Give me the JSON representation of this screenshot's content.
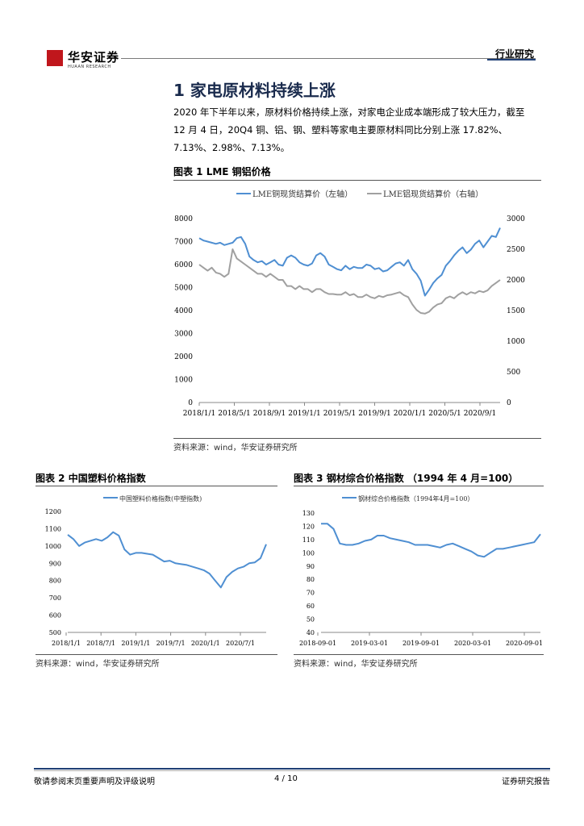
{
  "header": {
    "brand": "华安证券",
    "brand_sub": "HUAAN RESEARCH",
    "category": "行业研究"
  },
  "section": {
    "title": "1 家电原材料持续上涨",
    "paragraph": "2020 年下半年以来，原材料价格持续上涨，对家电企业成本端形成了较大压力，截至 12 月 4 日，20Q4 铜、铝、钢、塑料等家电主要原材料同比分别上涨 17.82%、7.13%、2.98%、7.13%。"
  },
  "figures": [
    {
      "title": "图表 1 LME 铜铝价格",
      "source": "资料来源：wind，华安证券研究所"
    },
    {
      "title": "图表 2 中国塑料价格指数",
      "source": "资料来源：wind，华安证券研究所"
    },
    {
      "title": "图表 3 钢材综合价格指数 （1994 年 4 月=100）",
      "source": "资料来源：wind，华安证券研究所"
    }
  ],
  "footer": {
    "disclaimer": "敬请参阅末页重要声明及评级说明",
    "page": "4 / 10",
    "report_type": "证券研究报告"
  },
  "colors": {
    "blue": "#4f8fd2",
    "grey": "#a0a0a0",
    "navy": "#1f3f75"
  },
  "chart_data": [
    {
      "type": "line",
      "title": "",
      "x_ticks": [
        "2018/1/1",
        "2018/5/1",
        "2018/9/1",
        "2019/1/1",
        "2019/5/1",
        "2019/9/1",
        "2020/1/1",
        "2020/5/1",
        "2020/9/1"
      ],
      "y_left_ticks": [
        "0",
        "1000",
        "2000",
        "3000",
        "4000",
        "5000",
        "6000",
        "7000",
        "8000"
      ],
      "y_right_ticks": [
        "0",
        "500",
        "1000",
        "1500",
        "2000",
        "2500",
        "3000"
      ],
      "ylim_left": [
        0,
        8000
      ],
      "ylim_right": [
        0,
        3000
      ],
      "legend_position": "top",
      "series": [
        {
          "name": "LME铜现货结算价（左轴）",
          "axis": "left",
          "color": "#4f8fd2",
          "x": [
            0,
            0.5,
            1,
            1.5,
            2,
            2.5,
            3,
            3.5,
            4,
            4.5,
            5,
            5.5,
            6,
            6.5,
            7,
            7.5,
            8,
            8.5,
            9,
            9.5,
            10,
            10.5,
            11,
            11.5,
            12,
            12.5,
            13,
            13.5,
            14,
            14.5,
            15,
            15.5,
            16,
            16.5,
            17,
            17.5,
            18,
            18.5,
            19,
            19.5,
            20,
            20.5,
            21,
            21.5,
            22,
            22.5,
            23,
            23.5,
            24,
            24.5,
            25,
            25.5,
            26,
            26.5,
            27,
            27.5,
            28,
            28.5,
            29,
            29.5,
            30,
            30.5,
            31,
            31.5,
            32,
            32.5,
            33,
            33.5,
            34,
            34.5,
            35,
            35.5,
            36
          ],
          "values": [
            7150,
            7050,
            7000,
            6950,
            6900,
            6950,
            6850,
            6900,
            6950,
            7150,
            7200,
            6900,
            6350,
            6200,
            6100,
            6150,
            6000,
            6100,
            6200,
            6000,
            5950,
            6300,
            6400,
            6300,
            6100,
            6000,
            5950,
            6050,
            6400,
            6500,
            6350,
            6000,
            5900,
            5800,
            5750,
            5950,
            5800,
            5900,
            5850,
            5850,
            6000,
            5950,
            5800,
            5850,
            5700,
            5750,
            5900,
            6050,
            6100,
            5950,
            6200,
            5800,
            5600,
            5300,
            4650,
            4900,
            5200,
            5400,
            5550,
            5950,
            6150,
            6400,
            6600,
            6750,
            6500,
            6650,
            6900,
            7050,
            6750,
            7000,
            7250,
            7200,
            7600
          ]
        },
        {
          "name": "LME铝现货结算价（右轴）",
          "axis": "right",
          "color": "#a0a0a0",
          "x": [
            0,
            0.5,
            1,
            1.5,
            2,
            2.5,
            3,
            3.5,
            4,
            4.5,
            5,
            5.5,
            6,
            6.5,
            7,
            7.5,
            8,
            8.5,
            9,
            9.5,
            10,
            10.5,
            11,
            11.5,
            12,
            12.5,
            13,
            13.5,
            14,
            14.5,
            15,
            15.5,
            16,
            16.5,
            17,
            17.5,
            18,
            18.5,
            19,
            19.5,
            20,
            20.5,
            21,
            21.5,
            22,
            22.5,
            23,
            23.5,
            24,
            24.5,
            25,
            25.5,
            26,
            26.5,
            27,
            27.5,
            28,
            28.5,
            29,
            29.5,
            30,
            30.5,
            31,
            31.5,
            32,
            32.5,
            33,
            33.5,
            34,
            34.5,
            35,
            35.5,
            36
          ],
          "values": [
            2250,
            2200,
            2150,
            2200,
            2120,
            2100,
            2050,
            2100,
            2500,
            2350,
            2300,
            2250,
            2200,
            2150,
            2100,
            2100,
            2050,
            2100,
            2050,
            2000,
            2000,
            1900,
            1900,
            1850,
            1900,
            1850,
            1850,
            1800,
            1850,
            1850,
            1800,
            1770,
            1770,
            1760,
            1760,
            1800,
            1750,
            1770,
            1720,
            1720,
            1760,
            1720,
            1700,
            1740,
            1720,
            1750,
            1760,
            1780,
            1800,
            1750,
            1720,
            1600,
            1510,
            1460,
            1450,
            1480,
            1550,
            1600,
            1620,
            1700,
            1730,
            1700,
            1760,
            1800,
            1760,
            1800,
            1780,
            1820,
            1800,
            1830,
            1900,
            1950,
            2000
          ]
        }
      ]
    },
    {
      "type": "line",
      "title": "",
      "x_ticks": [
        "2018/1/1",
        "2018/7/1",
        "2019/1/1",
        "2019/7/1",
        "2020/1/1",
        "2020/7/1"
      ],
      "y_ticks": [
        "500",
        "600",
        "700",
        "800",
        "900",
        "1000",
        "1100",
        "1200"
      ],
      "ylim": [
        500,
        1200
      ],
      "legend_position": "top",
      "series": [
        {
          "name": "中国塑料价格指数(中塑指数)",
          "color": "#4f8fd2",
          "x": [
            0,
            1,
            2,
            3,
            4,
            5,
            6,
            7,
            8,
            9,
            10,
            11,
            12,
            13,
            14,
            15,
            16,
            17,
            18,
            19,
            20,
            21,
            22,
            23,
            24,
            25,
            26,
            27,
            28,
            29,
            30,
            31,
            32,
            33,
            34,
            35
          ],
          "values": [
            1065,
            1040,
            1000,
            1020,
            1030,
            1040,
            1030,
            1050,
            1080,
            1060,
            980,
            950,
            960,
            960,
            955,
            950,
            930,
            910,
            915,
            900,
            895,
            890,
            880,
            870,
            860,
            840,
            800,
            760,
            820,
            850,
            870,
            880,
            900,
            905,
            930,
            1010
          ]
        }
      ]
    },
    {
      "type": "line",
      "title": "",
      "x_ticks": [
        "2018-09-01",
        "2019-03-01",
        "2019-09-01",
        "2020-03-01",
        "2020-09-01"
      ],
      "y_ticks": [
        "40",
        "50",
        "60",
        "70",
        "80",
        "90",
        "100",
        "110",
        "120",
        "130"
      ],
      "ylim": [
        40,
        130
      ],
      "legend_position": "top",
      "series": [
        {
          "name": "钢材综合价格指数（1994年4月=100）",
          "color": "#4f8fd2",
          "x": [
            0,
            1,
            2,
            3,
            4,
            5,
            6,
            7,
            8,
            9,
            10,
            11,
            12,
            13,
            14,
            15,
            16,
            17,
            18,
            19,
            20,
            21,
            22,
            23,
            24,
            25,
            26,
            27,
            28,
            29,
            30,
            31,
            32,
            33,
            34,
            35
          ],
          "values": [
            122,
            122,
            118,
            107,
            106,
            106,
            107,
            109,
            110,
            113,
            113,
            111,
            110,
            109,
            108,
            106,
            106,
            106,
            105,
            104,
            106,
            107,
            105,
            103,
            101,
            98,
            97,
            100,
            103,
            103,
            104,
            105,
            106,
            107,
            108,
            114
          ]
        }
      ]
    }
  ]
}
